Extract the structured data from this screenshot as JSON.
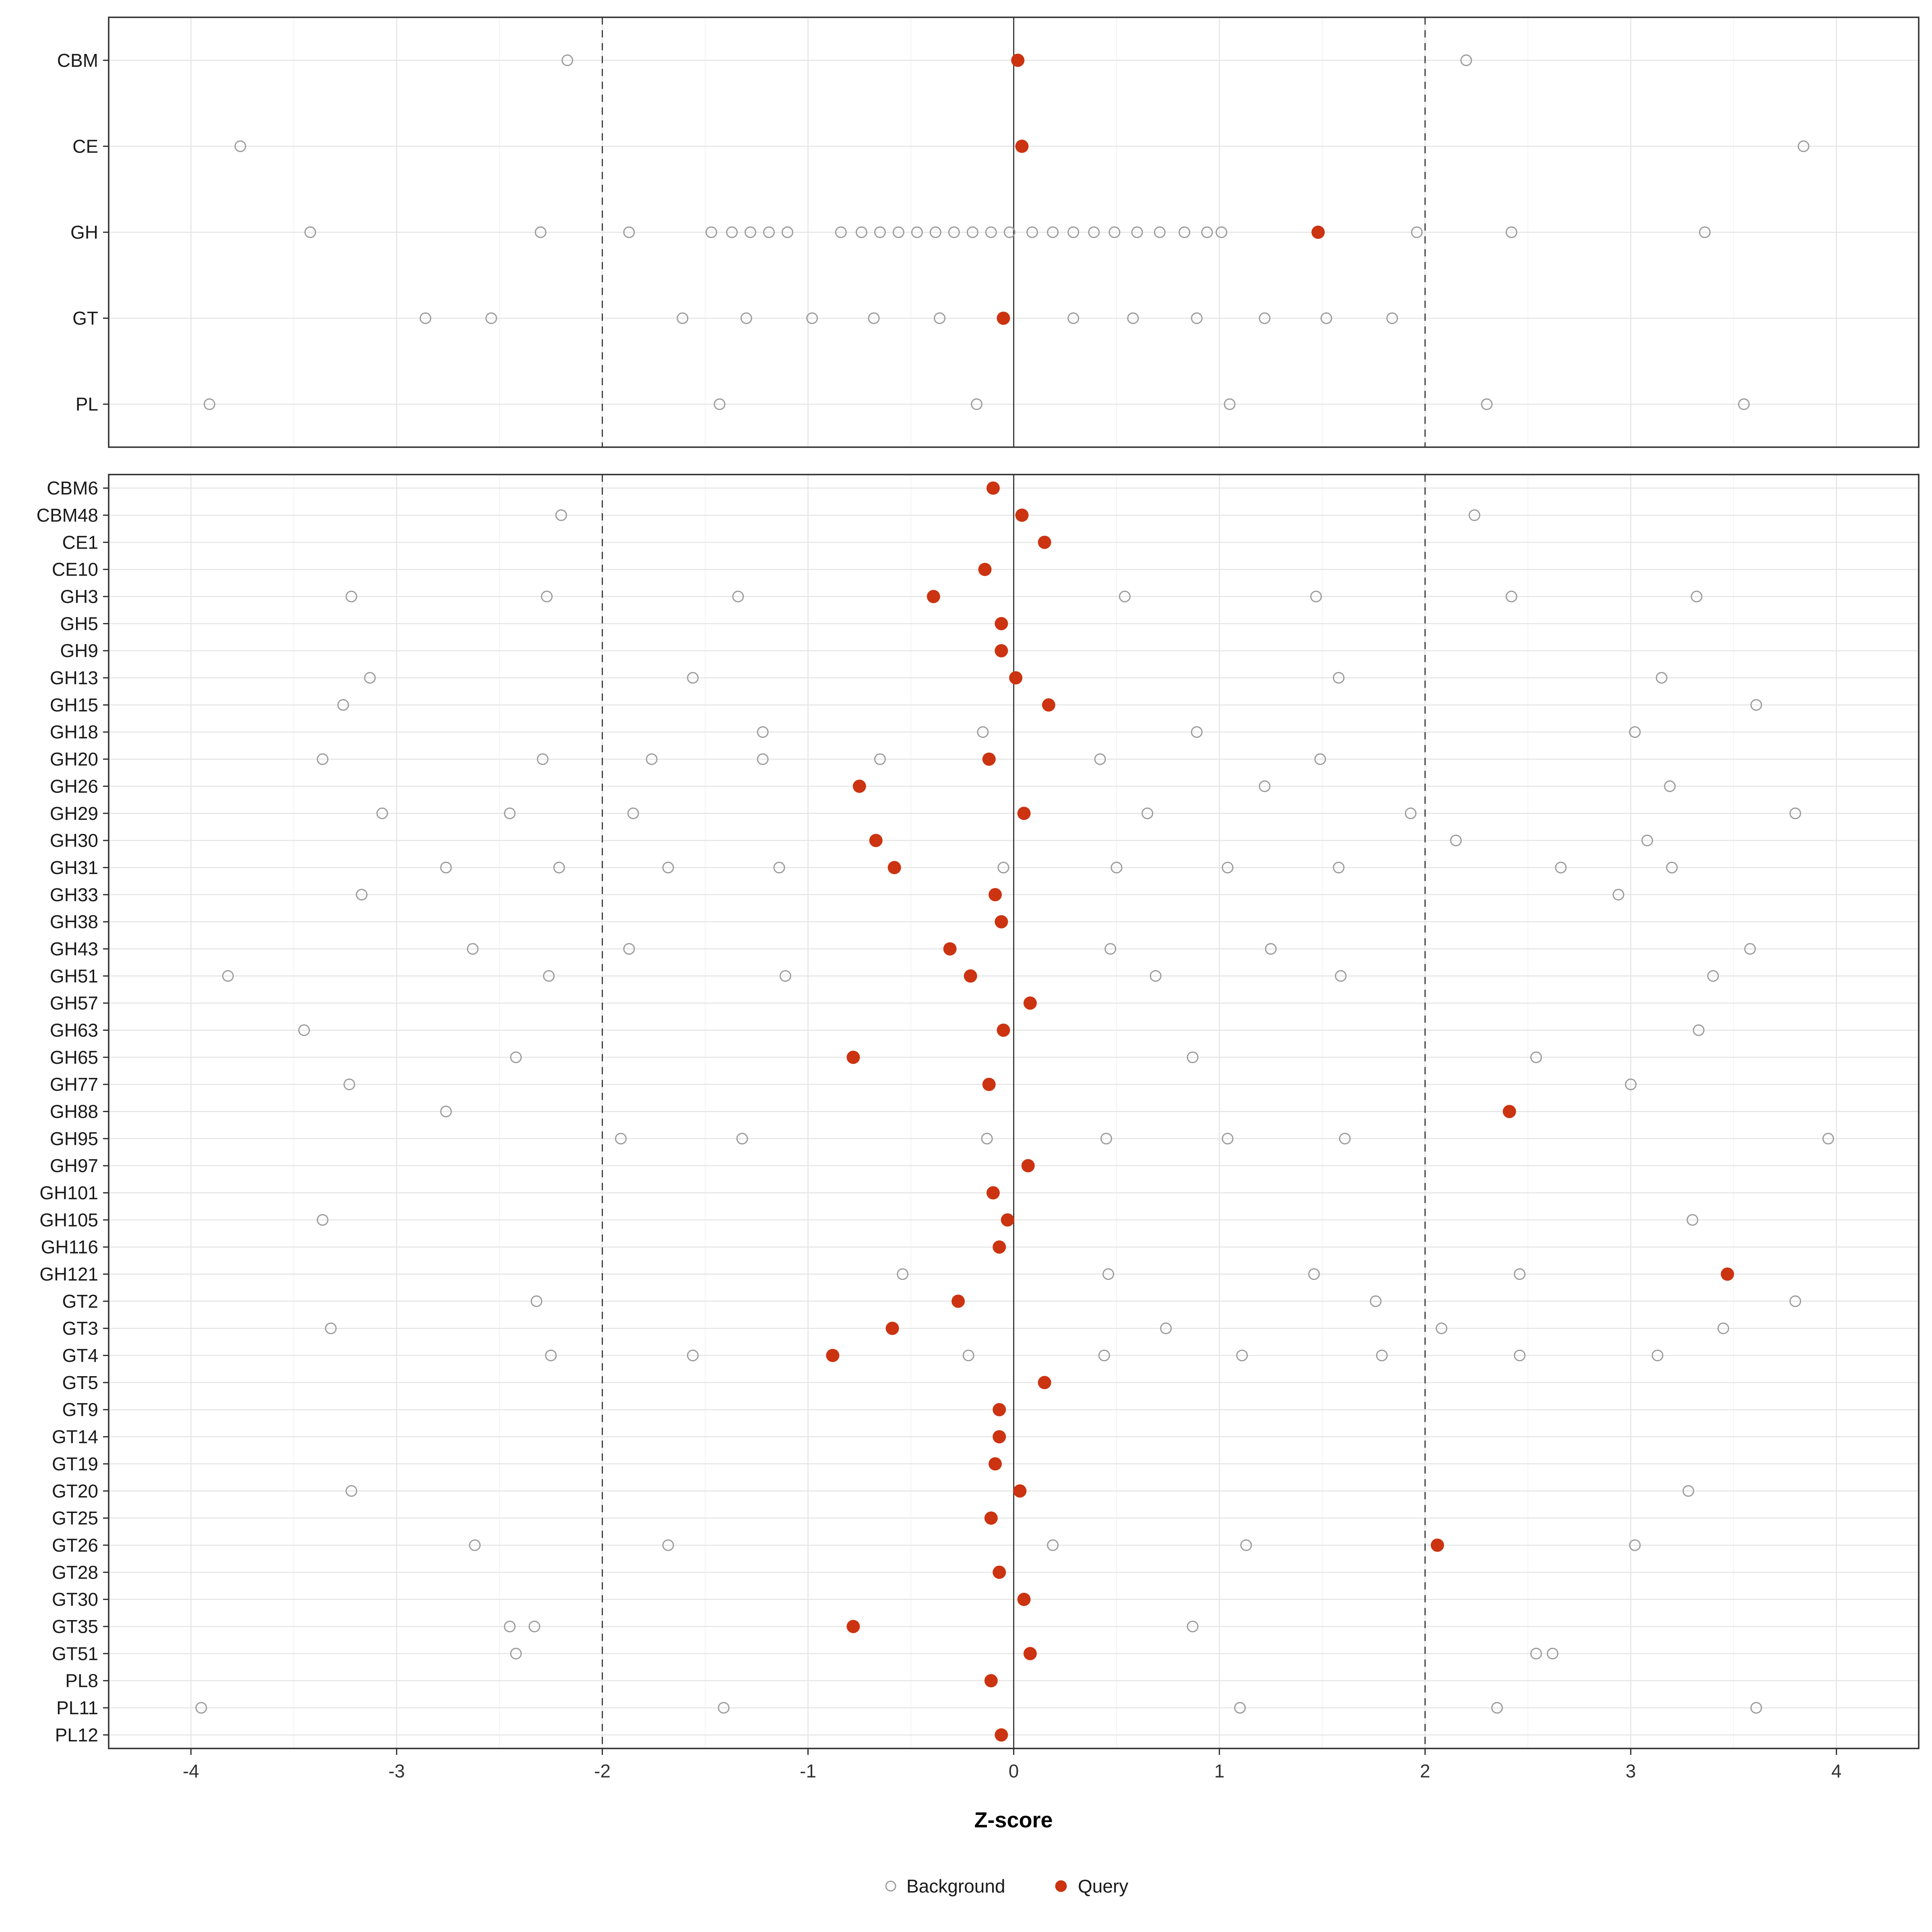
{
  "chart_data": {
    "type": "scatter",
    "title": "",
    "xlabel": "Z-score",
    "ylabel": "",
    "xlim": [
      -4.4,
      4.4
    ],
    "x_ticks": [
      -4,
      -3,
      -2,
      -1,
      0,
      1,
      2,
      3,
      4
    ],
    "reference_lines": {
      "solid": [
        0
      ],
      "dashed": [
        -2,
        2
      ]
    },
    "grid": true,
    "legend_position": "bottom",
    "colors": {
      "background_point": "#9b9b9b",
      "query_point": "#cc3311",
      "grid_major": "#e4e4e4",
      "grid_minor": "#f3f3f3",
      "reference_line": "#3c3c3c",
      "panel_border": "#2e2e2e",
      "panel_background": "#ffffff"
    },
    "legend": [
      {
        "label": "Background",
        "role": "background"
      },
      {
        "label": "Query",
        "role": "query"
      }
    ],
    "panels": [
      {
        "name": "categories",
        "rows": [
          {
            "label": "CBM",
            "background": [
              -2.17,
              2.2
            ],
            "query": [
              0.02
            ]
          },
          {
            "label": "CE",
            "background": [
              -3.76,
              3.84
            ],
            "query": [
              0.04
            ]
          },
          {
            "label": "GH",
            "background": [
              -3.42,
              -2.3,
              -1.87,
              -1.47,
              -1.37,
              -1.28,
              -1.19,
              -1.1,
              -0.84,
              -0.74,
              -0.65,
              -0.56,
              -0.47,
              -0.38,
              -0.29,
              -0.2,
              -0.11,
              -0.02,
              0.09,
              0.19,
              0.29,
              0.39,
              0.49,
              0.6,
              0.71,
              0.83,
              0.94,
              1.01,
              1.96,
              2.42,
              3.36
            ],
            "query": [
              1.48
            ]
          },
          {
            "label": "GT",
            "background": [
              -2.86,
              -2.54,
              -1.61,
              -1.3,
              -0.98,
              -0.68,
              -0.36,
              0.29,
              0.58,
              0.89,
              1.22,
              1.52,
              1.84
            ],
            "query": [
              -0.05
            ]
          },
          {
            "label": "PL",
            "background": [
              -3.91,
              -1.43,
              -0.18,
              1.05,
              2.3,
              3.55
            ],
            "query": []
          }
        ]
      },
      {
        "name": "families",
        "rows": [
          {
            "label": "CBM6",
            "background": [],
            "query": [
              -0.1
            ]
          },
          {
            "label": "CBM48",
            "background": [
              -2.2,
              2.24
            ],
            "query": [
              0.04
            ]
          },
          {
            "label": "CE1",
            "background": [],
            "query": [
              0.15
            ]
          },
          {
            "label": "CE10",
            "background": [],
            "query": [
              -0.14
            ]
          },
          {
            "label": "GH3",
            "background": [
              -3.22,
              -2.27,
              -1.34,
              0.54,
              1.47,
              2.42,
              3.32
            ],
            "query": [
              -0.39
            ]
          },
          {
            "label": "GH5",
            "background": [],
            "query": [
              -0.06
            ]
          },
          {
            "label": "GH9",
            "background": [],
            "query": [
              -0.06
            ]
          },
          {
            "label": "GH13",
            "background": [
              -3.13,
              -1.56,
              1.58,
              3.15
            ],
            "query": [
              0.01
            ]
          },
          {
            "label": "GH15",
            "background": [
              -3.26,
              3.61
            ],
            "query": [
              0.17
            ]
          },
          {
            "label": "GH18",
            "background": [
              -1.22,
              -0.15,
              0.89,
              3.02
            ],
            "query": []
          },
          {
            "label": "GH20",
            "background": [
              -3.36,
              -2.29,
              -1.76,
              -1.22,
              -0.65,
              0.42,
              1.49
            ],
            "query": [
              -0.12
            ]
          },
          {
            "label": "GH26",
            "background": [
              1.22,
              3.19
            ],
            "query": [
              -0.75
            ]
          },
          {
            "label": "GH29",
            "background": [
              -3.07,
              -2.45,
              -1.85,
              0.65,
              1.93,
              3.8
            ],
            "query": [
              0.05
            ]
          },
          {
            "label": "GH30",
            "background": [
              2.15,
              3.08
            ],
            "query": [
              -0.67
            ]
          },
          {
            "label": "GH31",
            "background": [
              -2.76,
              -2.21,
              -1.68,
              -1.14,
              -0.05,
              0.5,
              1.04,
              1.58,
              2.66,
              3.2
            ],
            "query": [
              -0.58
            ]
          },
          {
            "label": "GH33",
            "background": [
              -3.17,
              2.94
            ],
            "query": [
              -0.09
            ]
          },
          {
            "label": "GH38",
            "background": [],
            "query": [
              -0.06
            ]
          },
          {
            "label": "GH43",
            "background": [
              -2.63,
              -1.87,
              0.47,
              1.25,
              3.58
            ],
            "query": [
              -0.31
            ]
          },
          {
            "label": "GH51",
            "background": [
              -3.82,
              -2.26,
              -1.11,
              0.69,
              1.59,
              3.4
            ],
            "query": [
              -0.21
            ]
          },
          {
            "label": "GH57",
            "background": [],
            "query": [
              0.08
            ]
          },
          {
            "label": "GH63",
            "background": [
              -3.45,
              3.33
            ],
            "query": [
              -0.05
            ]
          },
          {
            "label": "GH65",
            "background": [
              -2.42,
              0.87,
              2.54
            ],
            "query": [
              -0.78
            ]
          },
          {
            "label": "GH77",
            "background": [
              -3.23,
              3.0
            ],
            "query": [
              -0.12
            ]
          },
          {
            "label": "GH88",
            "background": [
              -2.76
            ],
            "query": [
              2.41
            ]
          },
          {
            "label": "GH95",
            "background": [
              -1.91,
              -1.32,
              -0.13,
              0.45,
              1.04,
              1.61,
              3.96
            ],
            "query": []
          },
          {
            "label": "GH97",
            "background": [],
            "query": [
              0.07
            ]
          },
          {
            "label": "GH101",
            "background": [],
            "query": [
              -0.1
            ]
          },
          {
            "label": "GH105",
            "background": [
              -3.36,
              3.3
            ],
            "query": [
              -0.03
            ]
          },
          {
            "label": "GH116",
            "background": [],
            "query": [
              -0.07
            ]
          },
          {
            "label": "GH121",
            "background": [
              -0.54,
              0.46,
              1.46,
              2.46
            ],
            "query": [
              3.47
            ]
          },
          {
            "label": "GT2",
            "background": [
              -2.32,
              1.76,
              3.8
            ],
            "query": [
              -0.27
            ]
          },
          {
            "label": "GT3",
            "background": [
              -3.32,
              0.74,
              2.08,
              3.45
            ],
            "query": [
              -0.59
            ]
          },
          {
            "label": "GT4",
            "background": [
              -2.25,
              -1.56,
              -0.22,
              0.44,
              1.11,
              1.79,
              2.46,
              3.13
            ],
            "query": [
              -0.88
            ]
          },
          {
            "label": "GT5",
            "background": [],
            "query": [
              0.15
            ]
          },
          {
            "label": "GT9",
            "background": [],
            "query": [
              -0.07
            ]
          },
          {
            "label": "GT14",
            "background": [],
            "query": [
              -0.07
            ]
          },
          {
            "label": "GT19",
            "background": [],
            "query": [
              -0.09
            ]
          },
          {
            "label": "GT20",
            "background": [
              -3.22,
              3.28
            ],
            "query": [
              0.03
            ]
          },
          {
            "label": "GT25",
            "background": [],
            "query": [
              -0.11
            ]
          },
          {
            "label": "GT26",
            "background": [
              -2.62,
              -1.68,
              0.19,
              1.13,
              3.02
            ],
            "query": [
              2.06
            ]
          },
          {
            "label": "GT28",
            "background": [],
            "query": [
              -0.07
            ]
          },
          {
            "label": "GT30",
            "background": [],
            "query": [
              0.05
            ]
          },
          {
            "label": "GT35",
            "background": [
              -2.45,
              -2.33,
              0.87
            ],
            "query": [
              -0.78
            ]
          },
          {
            "label": "GT51",
            "background": [
              -2.42,
              2.54,
              2.62
            ],
            "query": [
              0.08
            ]
          },
          {
            "label": "PL8",
            "background": [],
            "query": [
              -0.11
            ]
          },
          {
            "label": "PL11",
            "background": [
              -3.95,
              -1.41,
              1.1,
              2.35,
              3.61
            ],
            "query": []
          },
          {
            "label": "PL12",
            "background": [],
            "query": [
              -0.06
            ]
          }
        ]
      }
    ]
  }
}
